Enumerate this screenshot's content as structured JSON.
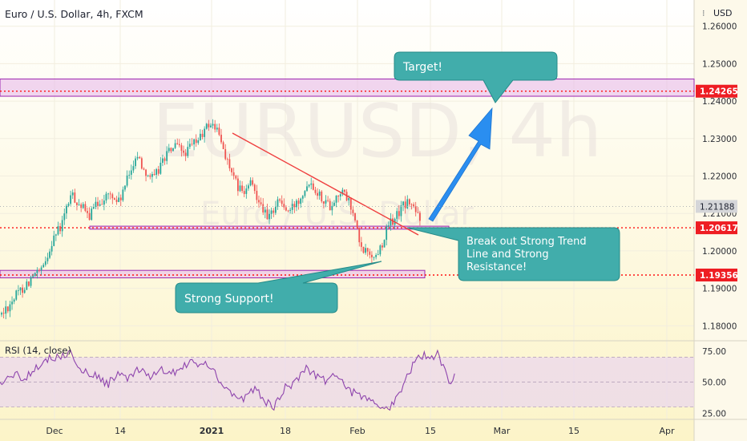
{
  "header": {
    "title": "Euro / U.S. Dollar, 4h, FXCM",
    "currency": "USD"
  },
  "watermark": {
    "line1": "EURUSD, 4h",
    "line2": "Euro / U.S. Dollar"
  },
  "rsi_title": "RSI (14, close)",
  "colors": {
    "bull": "#26a69a",
    "bear": "#ef5350",
    "zone_fill": "#e6b5ea",
    "zone_line": "#9c27b0",
    "level_dot": "#ff1111",
    "trendline": "#ef3e3e",
    "arrow": "#2a8ef0",
    "callout_fill": "#41adab",
    "callout_edge": "#258b89",
    "rsi_line": "#8e44ad",
    "rsi_band": "#e9d5ef",
    "bg_top": "#ffffff",
    "bg_bottom": "#fcf4c8"
  },
  "chart_data": [
    {
      "type": "candlestick",
      "title": "Euro / U.S. Dollar, 4h, FXCM",
      "x_ticks": [
        "Dec",
        "14",
        "2021",
        "18",
        "Feb",
        "15",
        "Mar",
        "15",
        "Apr"
      ],
      "y_ticks": [
        "1.18000",
        "1.19000",
        "1.20000",
        "1.21000",
        "1.22000",
        "1.23000",
        "1.24000",
        "1.25000",
        "1.26000"
      ],
      "ylim": [
        1.176,
        1.267
      ],
      "last_price": "1.21188",
      "price_levels": [
        {
          "label": "1.24265",
          "value": 1.24265
        },
        {
          "label": "1.20617",
          "value": 1.20617
        },
        {
          "label": "1.19356",
          "value": 1.19356
        }
      ],
      "zones": [
        {
          "low": 1.2413,
          "high": 1.2459
        },
        {
          "low": 1.2058,
          "high": 1.2066
        },
        {
          "low": 1.1928,
          "high": 1.1948
        }
      ],
      "series_path": [
        [
          0.0,
          1.183
        ],
        [
          0.02,
          1.188
        ],
        [
          0.045,
          1.193
        ],
        [
          0.06,
          1.195
        ],
        [
          0.075,
          1.204
        ],
        [
          0.085,
          1.206
        ],
        [
          0.1,
          1.215
        ],
        [
          0.115,
          1.212
        ],
        [
          0.125,
          1.209
        ],
        [
          0.14,
          1.213
        ],
        [
          0.155,
          1.215
        ],
        [
          0.17,
          1.213
        ],
        [
          0.18,
          1.218
        ],
        [
          0.195,
          1.226
        ],
        [
          0.205,
          1.222
        ],
        [
          0.22,
          1.219
        ],
        [
          0.235,
          1.225
        ],
        [
          0.25,
          1.228
        ],
        [
          0.265,
          1.226
        ],
        [
          0.28,
          1.229
        ],
        [
          0.29,
          1.231
        ],
        [
          0.3,
          1.234
        ],
        [
          0.31,
          1.233
        ],
        [
          0.325,
          1.225
        ],
        [
          0.335,
          1.219
        ],
        [
          0.35,
          1.215
        ],
        [
          0.36,
          1.218
        ],
        [
          0.375,
          1.213
        ],
        [
          0.385,
          1.208
        ],
        [
          0.4,
          1.214
        ],
        [
          0.415,
          1.21
        ],
        [
          0.43,
          1.214
        ],
        [
          0.445,
          1.219
        ],
        [
          0.46,
          1.215
        ],
        [
          0.475,
          1.212
        ],
        [
          0.49,
          1.216
        ],
        [
          0.5,
          1.214
        ],
        [
          0.51,
          1.209
        ],
        [
          0.52,
          1.2
        ],
        [
          0.53,
          1.2
        ],
        [
          0.54,
          1.198
        ],
        [
          0.55,
          1.202
        ],
        [
          0.56,
          1.207
        ],
        [
          0.57,
          1.209
        ],
        [
          0.58,
          1.212
        ],
        [
          0.59,
          1.213
        ],
        [
          0.6,
          1.21
        ],
        [
          0.605,
          1.209
        ]
      ],
      "candle_extremes": {
        "first_low": 1.1805,
        "first_high": 1.2355,
        "second_low": 1.1952
      },
      "annotations": [
        "Target!",
        "Break out Strong Trend Line and Strong Resistance!",
        "Strong Support!"
      ]
    },
    {
      "type": "line",
      "title": "RSI (14, close)",
      "y_ticks": [
        "25.00",
        "50.00",
        "75.00"
      ],
      "ylim": [
        20,
        82
      ],
      "band": [
        30,
        70
      ],
      "series_path": [
        [
          0.0,
          48
        ],
        [
          0.02,
          57
        ],
        [
          0.035,
          52
        ],
        [
          0.05,
          62
        ],
        [
          0.07,
          69
        ],
        [
          0.09,
          71
        ],
        [
          0.1,
          75
        ],
        [
          0.11,
          62
        ],
        [
          0.125,
          58
        ],
        [
          0.14,
          55
        ],
        [
          0.155,
          48
        ],
        [
          0.17,
          58
        ],
        [
          0.185,
          52
        ],
        [
          0.2,
          60
        ],
        [
          0.215,
          53
        ],
        [
          0.23,
          61
        ],
        [
          0.245,
          56
        ],
        [
          0.26,
          62
        ],
        [
          0.275,
          66
        ],
        [
          0.29,
          64
        ],
        [
          0.305,
          63
        ],
        [
          0.32,
          48
        ],
        [
          0.335,
          40
        ],
        [
          0.35,
          36
        ],
        [
          0.365,
          44
        ],
        [
          0.375,
          40
        ],
        [
          0.385,
          33
        ],
        [
          0.395,
          30
        ],
        [
          0.41,
          45
        ],
        [
          0.425,
          50
        ],
        [
          0.44,
          62
        ],
        [
          0.455,
          56
        ],
        [
          0.47,
          51
        ],
        [
          0.485,
          58
        ],
        [
          0.5,
          44
        ],
        [
          0.515,
          40
        ],
        [
          0.53,
          35
        ],
        [
          0.545,
          32
        ],
        [
          0.56,
          27
        ],
        [
          0.575,
          42
        ],
        [
          0.59,
          58
        ],
        [
          0.6,
          68
        ],
        [
          0.61,
          72
        ],
        [
          0.62,
          70
        ],
        [
          0.63,
          73
        ],
        [
          0.64,
          62
        ],
        [
          0.645,
          55
        ],
        [
          0.65,
          48
        ],
        [
          0.655,
          58
        ]
      ]
    }
  ]
}
